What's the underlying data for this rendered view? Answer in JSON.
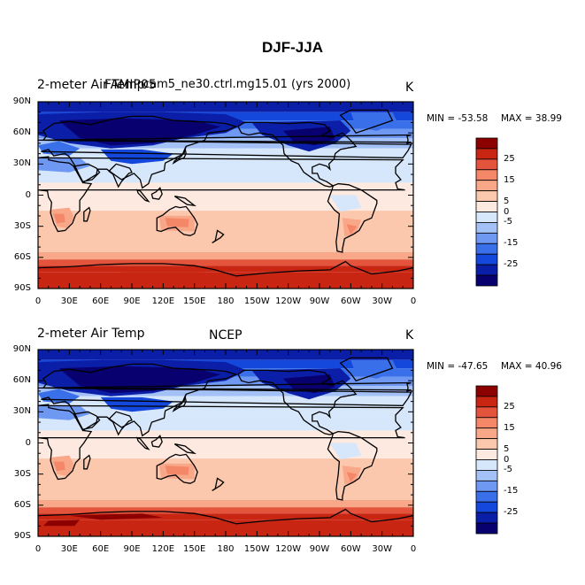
{
  "figure_title": "DJF-JJA",
  "colors": {
    "levels": [
      "#08006e",
      "#0a1ea8",
      "#1447dc",
      "#3a6fea",
      "#6e98f2",
      "#a3c1f7",
      "#d6e6fb",
      "#fde9df",
      "#fbc7ad",
      "#f8a889",
      "#f38768",
      "#e4543c",
      "#c82613",
      "#8d0000"
    ]
  },
  "colorbar_labels": [
    "25",
    "15",
    "5",
    "0",
    "-5",
    "-15",
    "-25"
  ],
  "x_tick_labels": [
    "0",
    "30E",
    "60E",
    "90E",
    "120E",
    "150E",
    "180",
    "150W",
    "120W",
    "90W",
    "60W",
    "30W",
    "0"
  ],
  "y_tick_labels": [
    "90N",
    "60N",
    "30N",
    "0",
    "30S",
    "60S",
    "90S"
  ],
  "panels": [
    {
      "left_title": "2-meter Air Temp",
      "center_title": "FAMIP05",
      "overlay_title": "cam5_ne30.ctrl.mg15.01 (yrs 2000)",
      "units": "K",
      "min_text": "MIN = -53.58",
      "max_text": "MAX =  38.99"
    },
    {
      "left_title": "2-meter Air Temp",
      "center_title": "NCEP",
      "units": "K",
      "min_text": "MIN = -47.65",
      "max_text": "MAX =  40.96"
    }
  ]
}
